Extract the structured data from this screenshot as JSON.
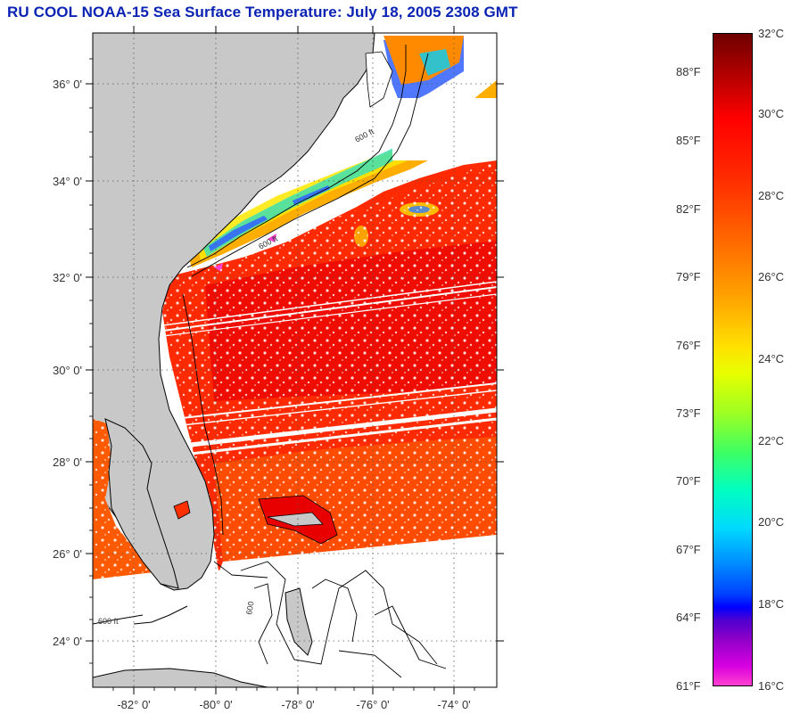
{
  "title": "RU COOL  NOAA-15  Sea Surface Temperature:  July 18, 2005 2308 GMT",
  "map": {
    "lat_labels": [
      "36° 0'",
      "34° 0'",
      "32° 0'",
      "30° 0'",
      "28° 0'",
      "26° 0'",
      "24° 0'"
    ],
    "lon_labels": [
      "-82° 0'",
      "-80° 0'",
      "-78° 0'",
      "-76° 0'",
      "-74° 0'"
    ],
    "contour_labels": [
      "600 ft",
      "600 ft",
      "600 ft",
      "600"
    ],
    "colors": {
      "land": "#c8c8c8",
      "ocean_warm": "#ff2200",
      "ocean_hot": "#e60000",
      "ocean_mid": "#ff5a00",
      "clouds": "#ffffff"
    }
  },
  "colorbar": {
    "celsius_labels": [
      "32°C",
      "30°C",
      "28°C",
      "26°C",
      "24°C",
      "22°C",
      "20°C",
      "18°C",
      "16°C"
    ],
    "fahrenheit_labels": [
      "88°F",
      "85°F",
      "82°F",
      "79°F",
      "76°F",
      "73°F",
      "70°F",
      "67°F",
      "64°F",
      "61°F"
    ]
  }
}
